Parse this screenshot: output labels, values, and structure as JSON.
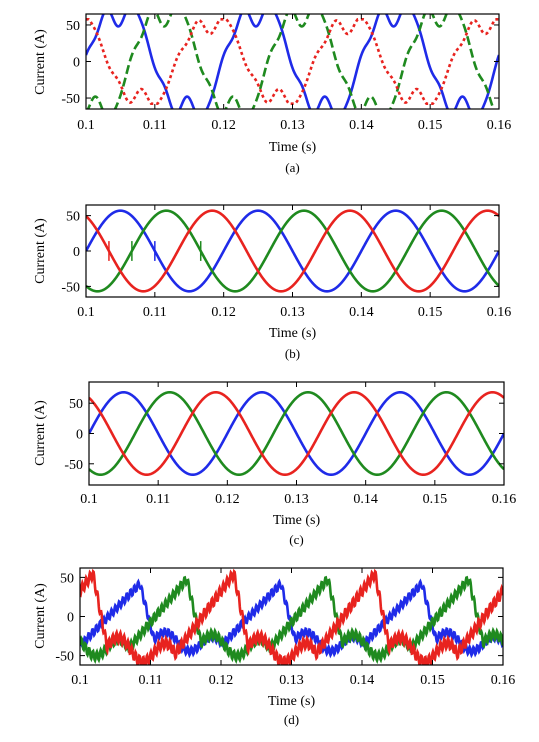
{
  "figure": {
    "ylabel": "Current (A)",
    "xlabel": "Time (s)"
  },
  "chart_data": [
    {
      "type": "line",
      "caption": "(a)",
      "xlabel": "Time (s)",
      "ylabel": "Current (A)",
      "xlim": [
        0.1,
        0.16
      ],
      "ylim": [
        -65,
        65
      ],
      "xticks": [
        "0.1",
        "0.11",
        "0.12",
        "0.13",
        "0.14",
        "0.15",
        "0.16"
      ],
      "yticks": [
        "50",
        "0",
        "-50"
      ],
      "ytick_values": [
        50,
        0,
        -50
      ],
      "grid": false,
      "legend": "none",
      "waveform": "distorted",
      "frequency_hz": 50,
      "series": [
        {
          "color": "#1f2be8",
          "style": "solid",
          "amplitude": 70,
          "phase_deg": 0
        },
        {
          "color": "#1f8a1f",
          "style": "dashed",
          "amplitude": 70,
          "phase_deg": -120
        },
        {
          "color": "#e8231f",
          "style": "dotted",
          "amplitude": 55,
          "phase_deg": 120
        }
      ]
    },
    {
      "type": "line",
      "caption": "(b)",
      "xlabel": "Time (s)",
      "ylabel": "Current (A)",
      "xlim": [
        0.1,
        0.16
      ],
      "ylim": [
        -65,
        65
      ],
      "xticks": [
        "0.1",
        "0.11",
        "0.12",
        "0.13",
        "0.14",
        "0.15",
        "0.16"
      ],
      "yticks": [
        "50",
        "0",
        "-50"
      ],
      "ytick_values": [
        50,
        0,
        -50
      ],
      "grid": false,
      "legend": "none",
      "waveform": "sine-with-spikes",
      "frequency_hz": 50,
      "series": [
        {
          "color": "#1f2be8",
          "style": "solid",
          "amplitude": 57,
          "phase_deg": 0
        },
        {
          "color": "#1f8a1f",
          "style": "solid",
          "amplitude": 57,
          "phase_deg": -120
        },
        {
          "color": "#e8231f",
          "style": "solid",
          "amplitude": 57,
          "phase_deg": 120
        }
      ]
    },
    {
      "type": "line",
      "caption": "(c)",
      "xlabel": "Time (s)",
      "ylabel": "Current (A)",
      "xlim": [
        0.1,
        0.16
      ],
      "ylim": [
        -85,
        85
      ],
      "xticks": [
        "0.1",
        "0.11",
        "0.12",
        "0.13",
        "0.14",
        "0.15",
        "0.16"
      ],
      "yticks": [
        "50",
        "0",
        "-50"
      ],
      "ytick_values": [
        50,
        0,
        -50
      ],
      "grid": false,
      "legend": "none",
      "waveform": "sine",
      "frequency_hz": 50,
      "series": [
        {
          "color": "#1f2be8",
          "style": "solid",
          "amplitude": 68,
          "phase_deg": 0
        },
        {
          "color": "#1f8a1f",
          "style": "solid",
          "amplitude": 68,
          "phase_deg": -120
        },
        {
          "color": "#e8231f",
          "style": "solid",
          "amplitude": 68,
          "phase_deg": 120
        }
      ]
    },
    {
      "type": "line",
      "caption": "(d)",
      "xlabel": "Time (s)",
      "ylabel": "Current (A)",
      "xlim": [
        0.1,
        0.16
      ],
      "ylim": [
        -62,
        62
      ],
      "xticks": [
        "0.1",
        "0.11",
        "0.12",
        "0.13",
        "0.14",
        "0.15",
        "0.16"
      ],
      "yticks": [
        "50",
        "0",
        "-50"
      ],
      "ytick_values": [
        50,
        0,
        -50
      ],
      "grid": false,
      "legend": "none",
      "waveform": "chopped",
      "frequency_hz": 50,
      "series": [
        {
          "color": "#1f2be8",
          "style": "solid",
          "amplitude": 42,
          "phase_deg": 0
        },
        {
          "color": "#1f8a1f",
          "style": "solid",
          "amplitude": 48,
          "phase_deg": -120
        },
        {
          "color": "#e8231f",
          "style": "solid",
          "amplitude": 55,
          "phase_deg": 120
        }
      ]
    }
  ]
}
